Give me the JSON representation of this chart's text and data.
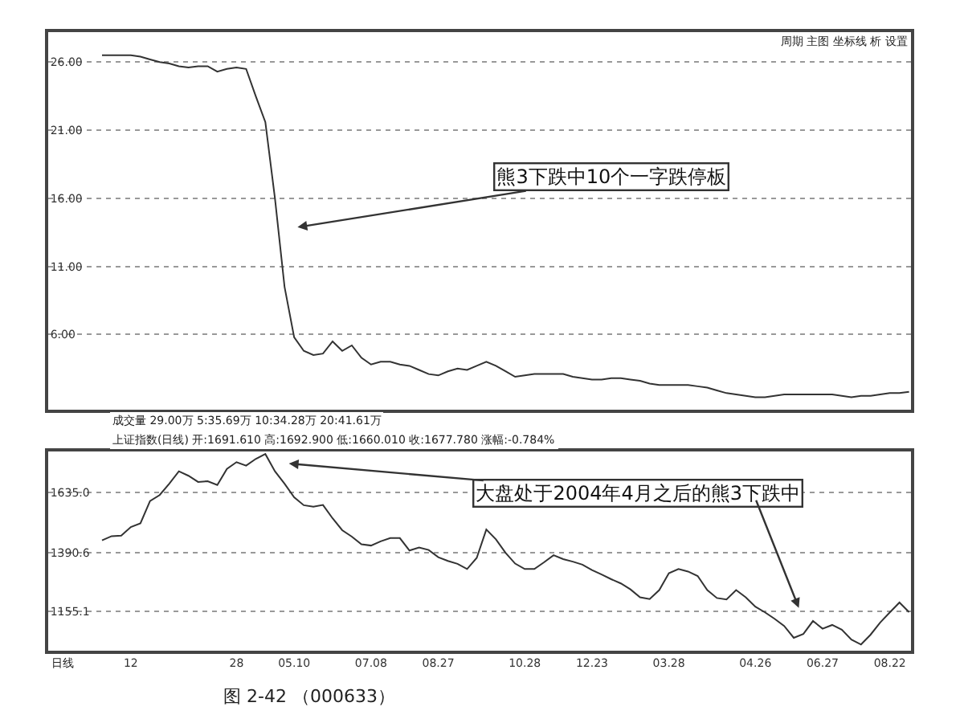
{
  "chart_data": [
    {
      "type": "line",
      "marker": "none",
      "line_style": "solid",
      "grid": "y",
      "tick_labels": "y",
      "ylim": [
        0.5,
        28.2
      ],
      "yticks": [
        {
          "value": 26,
          "label": "26.00"
        },
        {
          "value": 21,
          "label": "21.00"
        },
        {
          "value": 16,
          "label": "16.00"
        },
        {
          "value": 11,
          "label": "11.00"
        },
        {
          "value": 6,
          "label": "6.00"
        }
      ],
      "categories": [
        null,
        null,
        null,
        null,
        null,
        null,
        null,
        null,
        "12",
        null,
        null,
        null,
        null,
        null,
        null,
        null,
        null,
        null,
        null,
        "28",
        null,
        null,
        null,
        null,
        null,
        "05.10",
        null,
        null,
        null,
        null,
        null,
        null,
        null,
        "07.08",
        null,
        null,
        null,
        null,
        null,
        null,
        "08.27",
        null,
        null,
        null,
        null,
        null,
        null,
        null,
        null,
        "10.28",
        null,
        null,
        null,
        null,
        null,
        null,
        "12.23",
        null,
        null,
        null,
        null,
        null,
        null,
        null,
        "03.28",
        null,
        null,
        null,
        null,
        null,
        null,
        null,
        null,
        "04.26",
        null,
        null,
        null,
        null,
        null,
        null,
        "06.27",
        null,
        null,
        null,
        null,
        null,
        null,
        "08.22",
        null,
        null
      ],
      "series": [
        {
          "color": "#333333",
          "values": [
            null,
            null,
            null,
            null,
            null,
            26.5,
            26.5,
            26.5,
            26.5,
            26.4,
            26.2,
            26.0,
            25.9,
            25.7,
            25.6,
            25.7,
            25.7,
            25.3,
            25.5,
            25.6,
            25.5,
            23.5,
            21.6,
            16.0,
            9.5,
            5.8,
            4.8,
            4.5,
            4.6,
            5.5,
            4.8,
            5.2,
            4.3,
            3.8,
            4.0,
            4.0,
            3.8,
            3.7,
            3.4,
            3.1,
            3.0,
            3.3,
            3.5,
            3.4,
            3.7,
            4.0,
            3.7,
            3.3,
            2.9,
            3.0,
            3.1,
            3.1,
            3.1,
            3.1,
            2.9,
            2.8,
            2.7,
            2.7,
            2.8,
            2.8,
            2.7,
            2.6,
            2.4,
            2.3,
            2.3,
            2.3,
            2.3,
            2.2,
            2.1,
            1.9,
            1.7,
            1.6,
            1.5,
            1.4,
            1.4,
            1.5,
            1.6,
            1.6,
            1.6,
            1.6,
            1.6,
            1.6,
            1.5,
            1.4,
            1.5,
            1.5,
            1.6,
            1.7,
            1.7,
            1.8
          ]
        }
      ],
      "annotations": [
        "熊3下跌中10个一字跌停板",
        "成交量 29.00万 5:35.69万 10:34.28万 20:41.61万",
        "周期 主图 坐标线 析 设置"
      ]
    },
    {
      "type": "line",
      "marker": "none",
      "line_style": "solid",
      "grid": "y",
      "ylim": [
        995,
        1800
      ],
      "yticks": [
        {
          "value": 1635,
          "label": "1635.0"
        },
        {
          "value": 1390.6,
          "label": "1390.6"
        },
        {
          "value": 1155.1,
          "label": "1155.1"
        }
      ],
      "categories": [
        null,
        null,
        null,
        null,
        null,
        null,
        null,
        null,
        "12",
        null,
        null,
        null,
        null,
        null,
        null,
        null,
        null,
        null,
        null,
        "28",
        null,
        null,
        null,
        null,
        null,
        "05.10",
        null,
        null,
        null,
        null,
        null,
        null,
        null,
        "07.08",
        null,
        null,
        null,
        null,
        null,
        null,
        "08.27",
        null,
        null,
        null,
        null,
        null,
        null,
        null,
        null,
        "10.28",
        null,
        null,
        null,
        null,
        null,
        null,
        "12.23",
        null,
        null,
        null,
        null,
        null,
        null,
        null,
        "03.28",
        null,
        null,
        null,
        null,
        null,
        null,
        null,
        null,
        "04.26",
        null,
        null,
        null,
        null,
        null,
        null,
        "06.27",
        null,
        null,
        null,
        null,
        null,
        null,
        "08.22",
        null,
        null
      ],
      "series": [
        {
          "color": "#333333",
          "values": [
            null,
            null,
            null,
            null,
            null,
            1441,
            1458,
            1460,
            1495,
            1510,
            1600,
            1624,
            1670,
            1720,
            1702,
            1677,
            1680,
            1665,
            1730,
            1757,
            1743,
            1770,
            1790,
            1720,
            1670,
            1615,
            1583,
            1577,
            1584,
            1530,
            1482,
            1456,
            1425,
            1420,
            1437,
            1450,
            1450,
            1400,
            1412,
            1402,
            1373,
            1358,
            1346,
            1325,
            1370,
            1485,
            1445,
            1391,
            1347,
            1325,
            1325,
            1352,
            1381,
            1365,
            1355,
            1343,
            1321,
            1303,
            1284,
            1267,
            1243,
            1211,
            1204,
            1240,
            1308,
            1325,
            1315,
            1297,
            1240,
            1208,
            1202,
            1240,
            1211,
            1173,
            1150,
            1124,
            1095,
            1047,
            1063,
            1115,
            1084,
            1099,
            1080,
            1040,
            1020,
            1060,
            1109,
            1150,
            1190,
            1151
          ]
        }
      ],
      "annotations": [
        "大盘处于2004年4月之后的熊3下跌中",
        "上证指数(日线) 开:1691.610 高:1692.900 低:1660.010 收:1677.780 涨幅:-0.784%",
        "日线",
        "图 2-42 （000633）"
      ]
    }
  ]
}
